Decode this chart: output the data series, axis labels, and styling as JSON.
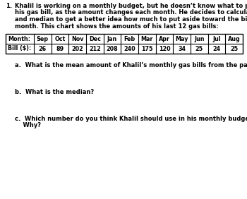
{
  "title_number": "1.",
  "title_lines": [
    "Khalil is working on a monthly budget, but he doesn’t know what to put down for",
    "his gas bill, as the amount changes each month. He decides to calculate the mean",
    "and median to get a better idea how much to put aside toward the bill each",
    "month. This chart shows the amounts of his last 12 gas bills:"
  ],
  "months": [
    "Sep",
    "Oct",
    "Nov",
    "Dec",
    "Jan",
    "Feb",
    "Mar",
    "Apr",
    "May",
    "Jun",
    "Jul",
    "Aug"
  ],
  "bills": [
    "26",
    "89",
    "202",
    "212",
    "208",
    "240",
    "175",
    "120",
    "34",
    "25",
    "24",
    "25"
  ],
  "row_labels": [
    "Month:",
    "Bill ($):"
  ],
  "question_a": "a.  What is the mean amount of Khalil’s monthly gas bills from the past year?",
  "question_b": "b.  What is the median?",
  "question_c_line1": "c.  Which number do you think Khalil should use in his monthly budget?",
  "question_c_line2": "    Why?",
  "font_size_body": 6.0,
  "font_size_table": 5.8,
  "font_size_questions": 6.0,
  "bg_color": "#ffffff",
  "text_color": "#000000",
  "table_border_color": "#000000"
}
